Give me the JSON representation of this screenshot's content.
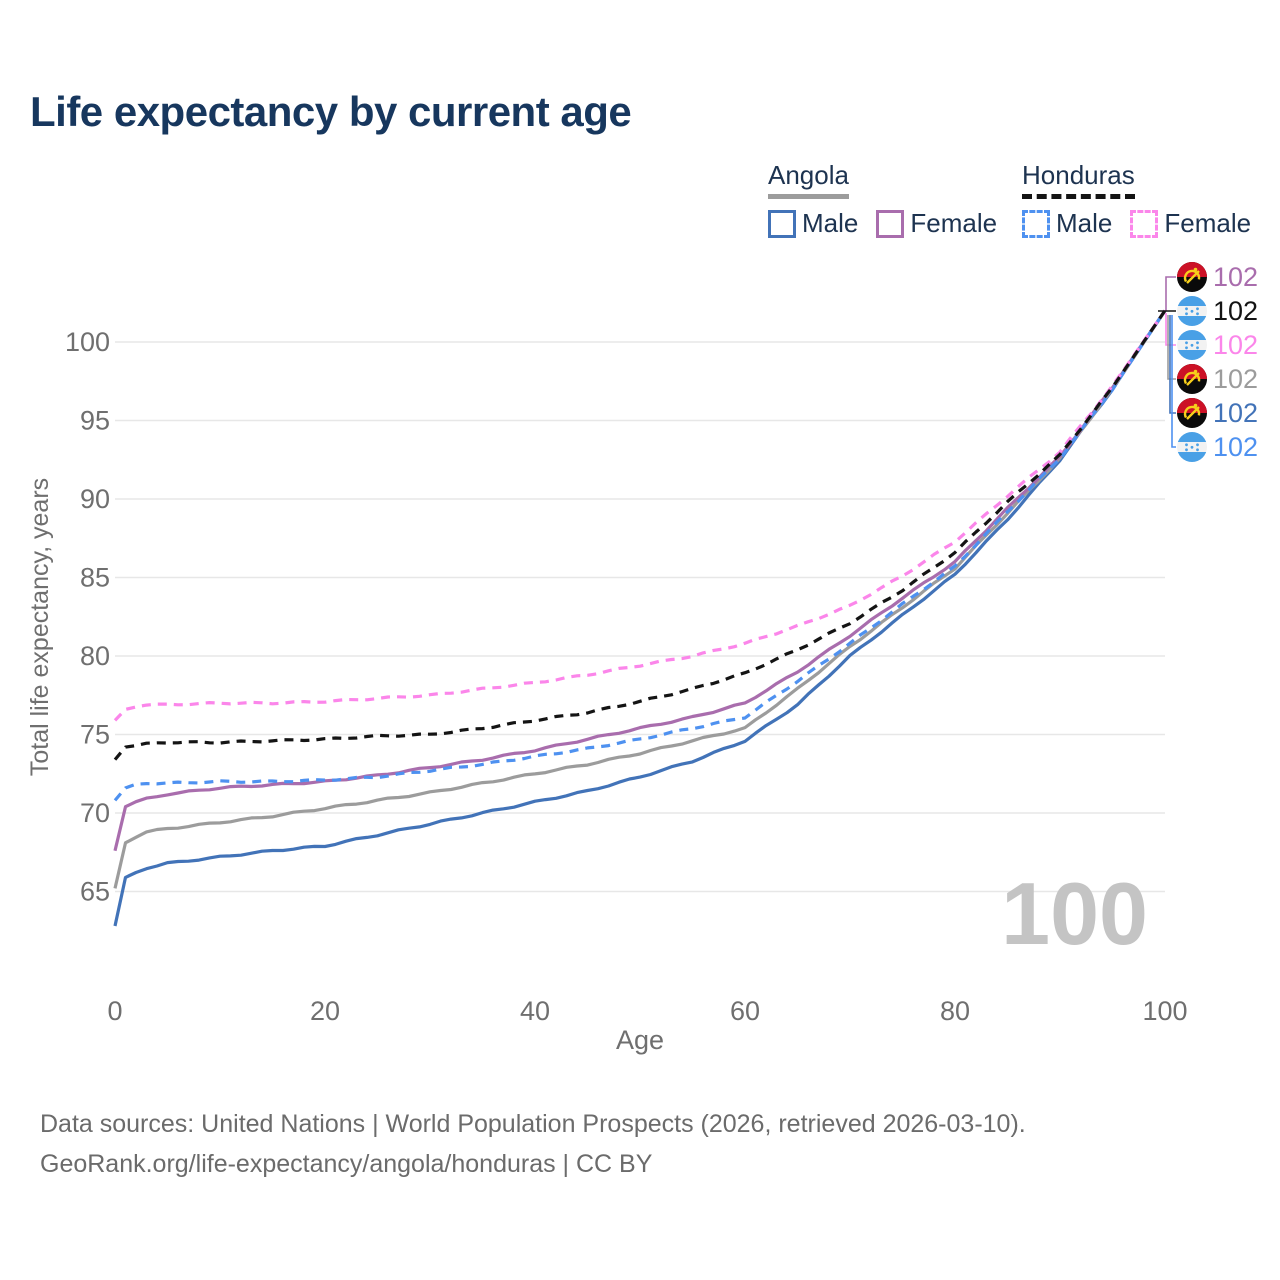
{
  "title": "Life expectancy by current age",
  "watermark": "100",
  "legend": {
    "groups": [
      {
        "country": "Angola",
        "line_style": "solid",
        "items": [
          {
            "label": "Male",
            "series": "angola_male"
          },
          {
            "label": "Female",
            "series": "angola_female"
          }
        ]
      },
      {
        "country": "Honduras",
        "line_style": "dashed",
        "items": [
          {
            "label": "Male",
            "series": "honduras_male"
          },
          {
            "label": "Female",
            "series": "honduras_female"
          }
        ]
      }
    ]
  },
  "colors": {
    "title": "#17375e",
    "legend_text": "#1d3350",
    "axis_text": "#6f6f6f",
    "grid": "#e7e7e7",
    "watermark": "#c4c4c4",
    "footer_text": "#6b6b6b",
    "angola_male": "#4273b8",
    "angola_female": "#a96dad",
    "angola_total": "#9c9c9c",
    "honduras_male": "#4e91f0",
    "honduras_female": "#fb86ea",
    "honduras_total": "#141414",
    "flag_angola_red": "#cc1126",
    "flag_angola_black": "#0a0a0a",
    "flag_angola_yellow": "#f7cf1b",
    "flag_honduras_blue": "#49a0e6"
  },
  "chart_data": {
    "type": "line",
    "title": "Life expectancy by current age",
    "xlabel": "Age",
    "ylabel": "Total life expectancy, years",
    "xlim": [
      0,
      100
    ],
    "ylim": [
      62,
      103
    ],
    "x_ticks": [
      0,
      20,
      40,
      60,
      80,
      100
    ],
    "y_ticks": [
      65,
      70,
      75,
      80,
      85,
      90,
      95,
      100
    ],
    "grid": "horizontal",
    "legend_position": "top-right",
    "x": [
      0,
      1,
      2,
      3,
      5,
      10,
      15,
      20,
      25,
      30,
      35,
      40,
      45,
      50,
      55,
      60,
      65,
      70,
      75,
      80,
      85,
      90,
      95,
      100
    ],
    "series": [
      {
        "id": "angola_male",
        "name": "Angola Male",
        "country": "Angola",
        "sex": "Male",
        "color_key": "angola_male",
        "dash": false,
        "values": [
          62.8,
          65.9,
          66.2,
          66.5,
          66.8,
          67.2,
          67.6,
          67.9,
          68.6,
          69.3,
          70.0,
          70.7,
          71.4,
          72.3,
          73.3,
          74.6,
          76.9,
          80.0,
          82.6,
          85.2,
          88.7,
          92.5,
          97.0,
          102
        ]
      },
      {
        "id": "angola_total",
        "name": "Angola Total",
        "country": "Angola",
        "sex": "Total",
        "color_key": "angola_total",
        "dash": false,
        "values": [
          65.2,
          68.1,
          68.5,
          68.8,
          69.0,
          69.4,
          69.8,
          70.3,
          70.8,
          71.3,
          71.9,
          72.5,
          73.1,
          73.8,
          74.6,
          75.4,
          77.9,
          80.6,
          83.1,
          85.6,
          89.1,
          92.6,
          97.0,
          102
        ]
      },
      {
        "id": "angola_female",
        "name": "Angola Female",
        "country": "Angola",
        "sex": "Female",
        "color_key": "angola_female",
        "dash": false,
        "values": [
          67.6,
          70.4,
          70.7,
          70.9,
          71.2,
          71.6,
          71.8,
          72.0,
          72.4,
          72.9,
          73.4,
          74.0,
          74.7,
          75.4,
          76.1,
          77.0,
          79.0,
          81.3,
          83.7,
          86.0,
          89.4,
          92.7,
          97.1,
          102
        ]
      },
      {
        "id": "honduras_male",
        "name": "Honduras Male",
        "country": "Honduras",
        "sex": "Male",
        "color_key": "honduras_male",
        "dash": true,
        "values": [
          70.8,
          71.6,
          71.8,
          71.9,
          71.9,
          72.0,
          72.0,
          72.1,
          72.3,
          72.7,
          73.1,
          73.6,
          74.1,
          74.7,
          75.4,
          76.1,
          78.4,
          80.8,
          83.3,
          85.7,
          89.2,
          92.6,
          97.0,
          102
        ]
      },
      {
        "id": "honduras_female",
        "name": "Honduras Female",
        "country": "Honduras",
        "sex": "Female",
        "color_key": "honduras_female",
        "dash": true,
        "values": [
          75.9,
          76.6,
          76.8,
          76.9,
          76.9,
          77.0,
          77.0,
          77.1,
          77.3,
          77.5,
          77.9,
          78.3,
          78.8,
          79.4,
          80.0,
          80.8,
          81.9,
          83.2,
          85.1,
          87.3,
          90.2,
          93.0,
          97.2,
          102
        ]
      },
      {
        "id": "honduras_total",
        "name": "Honduras Total",
        "country": "Honduras",
        "sex": "Total",
        "color_key": "honduras_total",
        "dash": true,
        "values": [
          73.4,
          74.2,
          74.3,
          74.4,
          74.5,
          74.5,
          74.6,
          74.7,
          74.9,
          75.0,
          75.4,
          75.9,
          76.4,
          77.1,
          77.9,
          78.9,
          80.4,
          82.1,
          84.2,
          86.6,
          89.8,
          92.8,
          97.1,
          102
        ]
      }
    ],
    "end_labels": [
      {
        "country": "Angola",
        "flag": "angola",
        "value": "102",
        "color_key": "angola_female"
      },
      {
        "country": "Honduras",
        "flag": "honduras",
        "value": "102",
        "color_key": "honduras_total"
      },
      {
        "country": "Honduras",
        "flag": "honduras",
        "value": "102",
        "color_key": "honduras_female"
      },
      {
        "country": "Angola",
        "flag": "angola",
        "value": "102",
        "color_key": "angola_total"
      },
      {
        "country": "Angola",
        "flag": "angola",
        "value": "102",
        "color_key": "angola_male"
      },
      {
        "country": "Honduras",
        "flag": "honduras",
        "value": "102",
        "color_key": "honduras_male"
      }
    ]
  },
  "footer": {
    "line1": "Data sources: United Nations | World Population Prospects (2026, retrieved 2026-03-10).",
    "line2": "GeoRank.org/life-expectancy/angola/honduras | CC BY"
  }
}
